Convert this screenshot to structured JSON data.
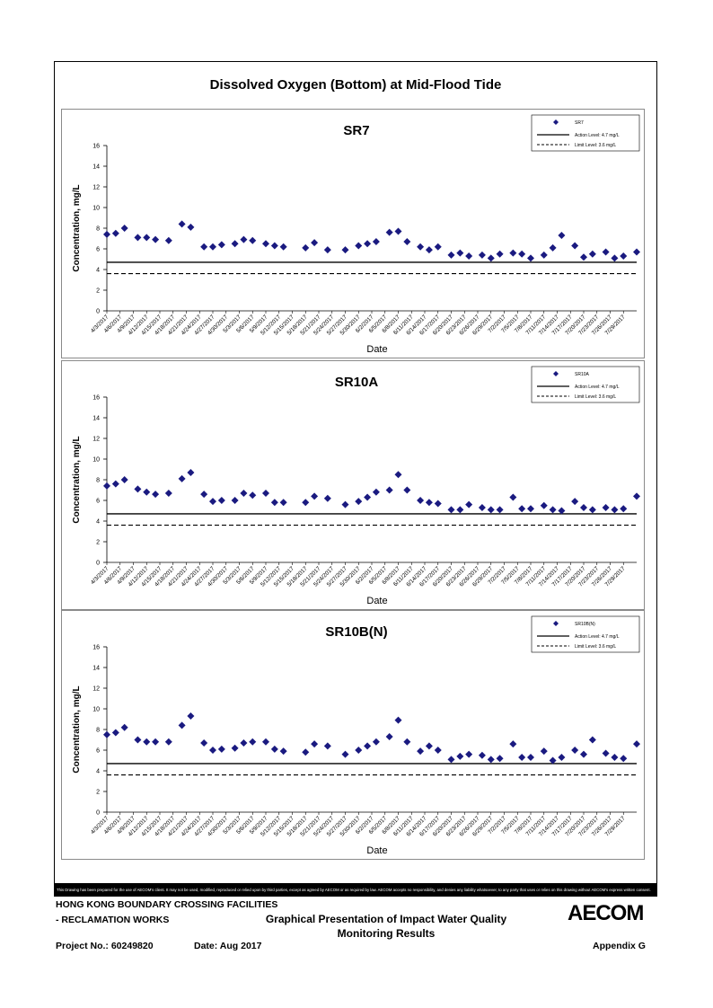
{
  "page_title": "Dissolved Oxygen (Bottom) at Mid-Flood Tide",
  "footer": {
    "disclaimer": "This Drawing has been prepared for the use of AECOM's client. It may not be used, modified, reproduced or relied upon by third parties, except as agreed by AECOM or as required by law. AECOM accepts no responsibility, and denies any liability whatsoever, to any party that uses or relies on this drawing without AECOM's express written consent.",
    "project_line1": "HONG KONG BOUNDARY CROSSING FACILITIES",
    "project_line2": "- RECLAMATION WORKS",
    "report_title_line1": "Graphical Presentation of Impact Water Quality",
    "report_title_line2": "Monitoring Results",
    "logo_text": "AECOM",
    "project_no": "Project No.: 60249820",
    "date": "Date: Aug 2017",
    "appendix": "Appendix G"
  },
  "colors": {
    "marker": "#1a1a80",
    "axis": "#000000",
    "panel_border": "#8a8a8a"
  },
  "chart_data": [
    {
      "type": "scatter",
      "title": "SR7",
      "xlabel": "Date",
      "ylabel": "Concentration, mg/L",
      "ylim": [
        0,
        16
      ],
      "yticks": [
        0,
        2,
        4,
        6,
        8,
        10,
        12,
        14,
        16
      ],
      "grid": false,
      "legend_placement": "top-right",
      "series": [
        {
          "name": "SR7",
          "marker": "diamond",
          "x": [
            "4/3/2017",
            "4/5/2017",
            "4/7/2017",
            "4/10/2017",
            "4/12/2017",
            "4/14/2017",
            "4/17/2017",
            "4/20/2017",
            "4/22/2017",
            "4/25/2017",
            "4/27/2017",
            "4/29/2017",
            "5/2/2017",
            "5/4/2017",
            "5/6/2017",
            "5/9/2017",
            "5/11/2017",
            "5/13/2017",
            "5/18/2017",
            "5/20/2017",
            "5/23/2017",
            "5/27/2017",
            "5/30/2017",
            "6/1/2017",
            "6/3/2017",
            "6/6/2017",
            "6/8/2017",
            "6/10/2017",
            "6/13/2017",
            "6/15/2017",
            "6/17/2017",
            "6/20/2017",
            "6/22/2017",
            "6/24/2017",
            "6/27/2017",
            "6/29/2017",
            "7/1/2017",
            "7/4/2017",
            "7/6/2017",
            "7/8/2017",
            "7/11/2017",
            "7/13/2017",
            "7/15/2017",
            "7/18/2017",
            "7/20/2017",
            "7/22/2017",
            "7/25/2017",
            "7/27/2017",
            "7/29/2017",
            "8/1/2017"
          ],
          "y": [
            7.4,
            7.5,
            8.0,
            7.1,
            7.1,
            6.9,
            6.8,
            8.4,
            8.1,
            6.2,
            6.2,
            6.4,
            6.5,
            6.9,
            6.8,
            6.5,
            6.3,
            6.2,
            6.1,
            6.6,
            5.9,
            5.9,
            6.3,
            6.5,
            6.7,
            7.6,
            7.7,
            6.7,
            6.2,
            5.9,
            6.2,
            5.4,
            5.6,
            5.3,
            5.4,
            5.1,
            5.5,
            5.6,
            5.5,
            5.1,
            5.4,
            6.1,
            7.3,
            6.3,
            5.2,
            5.5,
            5.7,
            5.1,
            5.3,
            5.7
          ]
        }
      ],
      "lines": [
        {
          "name": "Action Level: 4.7 mg/L",
          "value": 4.7,
          "style": "solid"
        },
        {
          "name": "Limit Level: 3.6 mg/L",
          "value": 3.6,
          "style": "dashed"
        }
      ]
    },
    {
      "type": "scatter",
      "title": "SR10A",
      "xlabel": "Date",
      "ylabel": "Concentration, mg/L",
      "ylim": [
        0,
        16
      ],
      "yticks": [
        0,
        2,
        4,
        6,
        8,
        10,
        12,
        14,
        16
      ],
      "grid": false,
      "legend_placement": "top-right",
      "series": [
        {
          "name": "SR10A",
          "marker": "diamond",
          "x": [
            "4/3/2017",
            "4/5/2017",
            "4/7/2017",
            "4/10/2017",
            "4/12/2017",
            "4/14/2017",
            "4/17/2017",
            "4/20/2017",
            "4/22/2017",
            "4/25/2017",
            "4/27/2017",
            "4/29/2017",
            "5/2/2017",
            "5/4/2017",
            "5/6/2017",
            "5/9/2017",
            "5/11/2017",
            "5/13/2017",
            "5/18/2017",
            "5/20/2017",
            "5/23/2017",
            "5/27/2017",
            "5/30/2017",
            "6/1/2017",
            "6/3/2017",
            "6/6/2017",
            "6/8/2017",
            "6/10/2017",
            "6/13/2017",
            "6/15/2017",
            "6/17/2017",
            "6/20/2017",
            "6/22/2017",
            "6/24/2017",
            "6/27/2017",
            "6/29/2017",
            "7/1/2017",
            "7/4/2017",
            "7/6/2017",
            "7/8/2017",
            "7/11/2017",
            "7/13/2017",
            "7/15/2017",
            "7/18/2017",
            "7/20/2017",
            "7/22/2017",
            "7/25/2017",
            "7/27/2017",
            "7/29/2017",
            "8/1/2017"
          ],
          "y": [
            7.4,
            7.6,
            8.0,
            7.1,
            6.8,
            6.6,
            6.7,
            8.1,
            8.7,
            6.6,
            5.9,
            6.0,
            6.0,
            6.7,
            6.5,
            6.7,
            5.8,
            5.8,
            5.8,
            6.4,
            6.2,
            5.6,
            5.9,
            6.3,
            6.8,
            7.0,
            8.5,
            7.0,
            6.0,
            5.8,
            5.7,
            5.1,
            5.1,
            5.6,
            5.3,
            5.1,
            5.1,
            6.3,
            5.2,
            5.2,
            5.5,
            5.1,
            5.0,
            5.9,
            5.3,
            5.1,
            5.3,
            5.1,
            5.2,
            6.4
          ]
        }
      ],
      "lines": [
        {
          "name": "Action Level: 4.7 mg/L",
          "value": 4.7,
          "style": "solid"
        },
        {
          "name": "Limit Level: 3.6 mg/L",
          "value": 3.6,
          "style": "dashed"
        }
      ]
    },
    {
      "type": "scatter",
      "title": "SR10B(N)",
      "xlabel": "Date",
      "ylabel": "Concentration, mg/L",
      "ylim": [
        0,
        16
      ],
      "yticks": [
        0,
        2,
        4,
        6,
        8,
        10,
        12,
        14,
        16
      ],
      "grid": false,
      "legend_placement": "top-right",
      "series": [
        {
          "name": "SR10B(N)",
          "marker": "diamond",
          "x": [
            "4/3/2017",
            "4/5/2017",
            "4/7/2017",
            "4/10/2017",
            "4/12/2017",
            "4/14/2017",
            "4/17/2017",
            "4/20/2017",
            "4/22/2017",
            "4/25/2017",
            "4/27/2017",
            "4/29/2017",
            "5/2/2017",
            "5/4/2017",
            "5/6/2017",
            "5/9/2017",
            "5/11/2017",
            "5/13/2017",
            "5/18/2017",
            "5/20/2017",
            "5/23/2017",
            "5/27/2017",
            "5/30/2017",
            "6/1/2017",
            "6/3/2017",
            "6/6/2017",
            "6/8/2017",
            "6/10/2017",
            "6/13/2017",
            "6/15/2017",
            "6/17/2017",
            "6/20/2017",
            "6/22/2017",
            "6/24/2017",
            "6/27/2017",
            "6/29/2017",
            "7/1/2017",
            "7/4/2017",
            "7/6/2017",
            "7/8/2017",
            "7/11/2017",
            "7/13/2017",
            "7/15/2017",
            "7/18/2017",
            "7/20/2017",
            "7/22/2017",
            "7/25/2017",
            "7/27/2017",
            "7/29/2017",
            "8/1/2017"
          ],
          "y": [
            7.5,
            7.7,
            8.2,
            7.0,
            6.8,
            6.8,
            6.8,
            8.4,
            9.3,
            6.7,
            6.0,
            6.1,
            6.2,
            6.7,
            6.8,
            6.8,
            6.1,
            5.9,
            5.8,
            6.6,
            6.4,
            5.6,
            6.0,
            6.4,
            6.8,
            7.3,
            8.9,
            6.8,
            5.9,
            6.4,
            6.0,
            5.1,
            5.4,
            5.6,
            5.5,
            5.1,
            5.2,
            6.6,
            5.3,
            5.3,
            5.9,
            5.0,
            5.3,
            6.0,
            5.6,
            7.0,
            5.7,
            5.3,
            5.2,
            6.6
          ]
        }
      ],
      "lines": [
        {
          "name": "Action Level: 4.7 mg/L",
          "value": 4.7,
          "style": "solid"
        },
        {
          "name": "Limit Level: 3.6 mg/L",
          "value": 3.6,
          "style": "dashed"
        }
      ]
    }
  ],
  "x_tick_labels": [
    "4/3/2017",
    "4/6/2017",
    "4/9/2017",
    "4/12/2017",
    "4/15/2017",
    "4/18/2017",
    "4/21/2017",
    "4/24/2017",
    "4/27/2017",
    "4/30/2017",
    "5/3/2017",
    "5/6/2017",
    "5/9/2017",
    "5/12/2017",
    "5/15/2017",
    "5/18/2017",
    "5/21/2017",
    "5/24/2017",
    "5/27/2017",
    "5/30/2017",
    "6/2/2017",
    "6/5/2017",
    "6/8/2017",
    "6/11/2017",
    "6/14/2017",
    "6/17/2017",
    "6/20/2017",
    "6/23/2017",
    "6/26/2017",
    "6/29/2017",
    "7/2/2017",
    "7/5/2017",
    "7/8/2017",
    "7/11/2017",
    "7/14/2017",
    "7/17/2017",
    "7/20/2017",
    "7/23/2017",
    "7/26/2017",
    "7/29/2017"
  ]
}
